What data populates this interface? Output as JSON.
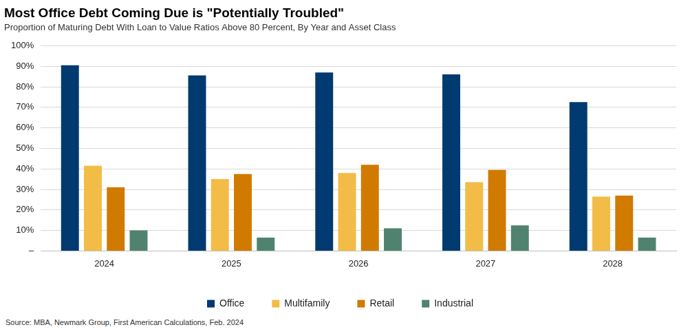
{
  "chart_data": {
    "type": "bar",
    "title": "Most Office Debt Coming Due is \"Potentially Troubled\"",
    "subtitle": "Proportion of Maturing Debt With Loan to Value Ratios Above 80 Percent, By Year and Asset Class",
    "source": "Source: MBA, Newmark Group, First American Calculations, Feb. 2024",
    "categories": [
      "2024",
      "2025",
      "2026",
      "2027",
      "2028"
    ],
    "series": [
      {
        "name": "Office",
        "color": "#003a70",
        "values": [
          90.5,
          85.5,
          87,
          86,
          72.5
        ]
      },
      {
        "name": "Multifamily",
        "color": "#f2bc46",
        "values": [
          41.5,
          35,
          38,
          33.5,
          26.5
        ]
      },
      {
        "name": "Retail",
        "color": "#d07a00",
        "values": [
          31,
          37.5,
          42,
          39.5,
          27
        ]
      },
      {
        "name": "Industrial",
        "color": "#4f8370",
        "values": [
          10,
          6.5,
          11,
          12.5,
          6.5
        ]
      }
    ],
    "ylim": [
      0,
      100
    ],
    "yticks": [
      {
        "value": 0,
        "label": "–"
      },
      {
        "value": 10,
        "label": "10%"
      },
      {
        "value": 20,
        "label": "20%"
      },
      {
        "value": 30,
        "label": "30%"
      },
      {
        "value": 40,
        "label": "40%"
      },
      {
        "value": 50,
        "label": "50%"
      },
      {
        "value": 60,
        "label": "60%"
      },
      {
        "value": 70,
        "label": "70%"
      },
      {
        "value": 80,
        "label": "80%"
      },
      {
        "value": 90,
        "label": "90%"
      },
      {
        "value": 100,
        "label": "100%"
      }
    ],
    "grid": true,
    "legend": "bottom"
  }
}
